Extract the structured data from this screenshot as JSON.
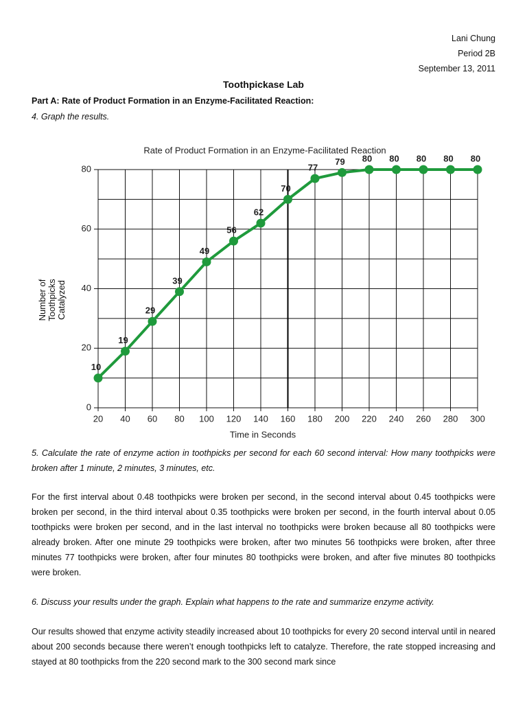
{
  "header": {
    "name": "Lani Chung",
    "period": "Period 2B",
    "date": "September 13, 2011"
  },
  "title": "Toothpickase Lab",
  "part_a": "Part A: Rate of Product Formation in an Enzyme-Facilitated Reaction:",
  "q4": "4. Graph the results.",
  "chart_data": {
    "type": "line",
    "title": "Rate of Product Formation in an Enzyme-Facilitated Reaction",
    "x_label": "Time in Seconds",
    "y_label": "Number of Toothpicks Catalyzed",
    "x": [
      20,
      40,
      60,
      80,
      100,
      120,
      140,
      160,
      180,
      200,
      220,
      240,
      260,
      280,
      300
    ],
    "series": [
      {
        "name": "Toothpicks catalyzed",
        "color": "#1f9a3c",
        "values": [
          10,
          19,
          29,
          39,
          49,
          56,
          62,
          70,
          77,
          79,
          80,
          80,
          80,
          80,
          80
        ]
      }
    ],
    "xlim": [
      20,
      300
    ],
    "ylim": [
      0,
      80
    ],
    "xticks": [
      20,
      40,
      60,
      80,
      100,
      120,
      140,
      160,
      180,
      200,
      220,
      240,
      260,
      280,
      300
    ],
    "yticks": [
      0,
      20,
      40,
      60,
      80
    ],
    "yminorticks": [
      10,
      30,
      50,
      70
    ],
    "vline": 160,
    "grid": true
  },
  "q5": "5. Calculate the rate of enzyme action in toothpicks per second for each 60 second interval: How many toothpicks were broken after 1 minute, 2 minutes, 3 minutes, etc.",
  "a5": "For the first interval about 0.48 toothpicks were broken per second, in the second interval about 0.45 toothpicks were broken per second, in the third interval about 0.35 toothpicks were broken per second, in the fourth interval about 0.05 toothpicks were broken per second, and in the last interval no toothpicks were broken because all 80 toothpicks were already broken. After one minute 29 toothpicks were broken, after two minutes 56 toothpicks were broken, after three minutes 77 toothpicks were broken, after four minutes 80 toothpicks were broken, and after five minutes 80 toothpicks were broken.",
  "q6": "6. Discuss your results under the graph. Explain what happens to the rate and summarize enzyme activity.",
  "a6": "Our results showed that enzyme activity steadily increased about 10 toothpicks for every 20 second interval until in neared about 200 seconds because there weren’t enough toothpicks left to catalyze. Therefore, the rate stopped increasing and stayed at 80 toothpicks from the 220 second mark to the 300 second mark since"
}
